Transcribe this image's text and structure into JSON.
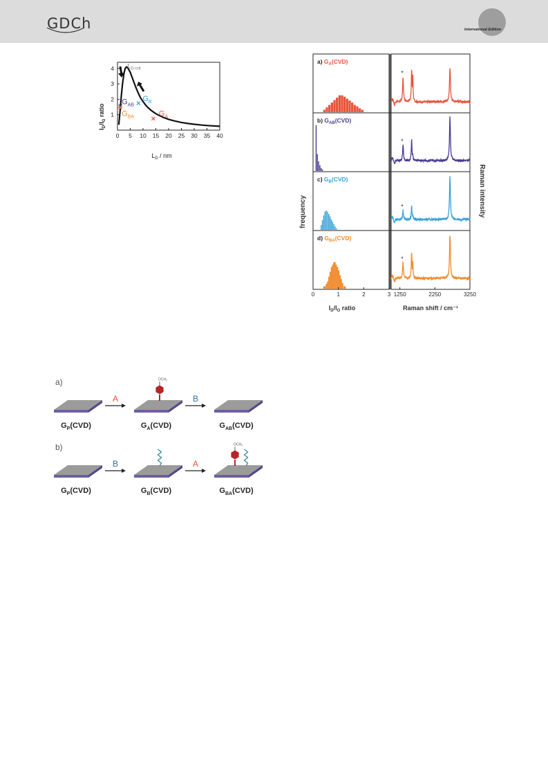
{
  "header": {
    "logo_text": "GDCh",
    "edition_text": "International Edition",
    "bar_color": "#dcdcdc"
  },
  "colors": {
    "gA": "#e8533a",
    "gAB": "#4b3a93",
    "gB": "#3aa0d8",
    "gBA": "#f08a2c",
    "gP": "#9b9b9b",
    "substrate": "#6f5ea8",
    "molecule": "#b8232a",
    "chain": "#3b8a9c"
  },
  "figure_left": {
    "chart_data": {
      "type": "line",
      "xlabel_main": "L",
      "xlabel_sub": "D",
      "xlabel_rest": " / nm",
      "ylabel": "I_D/I_G ratio",
      "xlim": [
        0,
        40
      ],
      "ylim": [
        0,
        4.4
      ],
      "xticks": [
        0,
        5,
        10,
        15,
        20,
        25,
        30,
        35,
        40
      ],
      "yticks": [
        1,
        2,
        3,
        4
      ],
      "series": [
        {
          "x": [
            0.5,
            1,
            1.5,
            2,
            2.5,
            3,
            3.5,
            4,
            5,
            6,
            7,
            8,
            9,
            10,
            11,
            12,
            13,
            14,
            15,
            16,
            18,
            20,
            22,
            25,
            28,
            30,
            33,
            35,
            38,
            40
          ],
          "y": [
            0.35,
            1.2,
            2.2,
            3.05,
            3.65,
            4.0,
            4.1,
            4.05,
            3.75,
            3.3,
            2.85,
            2.45,
            2.1,
            1.85,
            1.63,
            1.45,
            1.3,
            1.18,
            1.07,
            0.98,
            0.82,
            0.7,
            0.61,
            0.5,
            0.42,
            0.38,
            0.33,
            0.3,
            0.27,
            0.25
          ]
        }
      ],
      "peak_label_main": "L",
      "peak_label_sub": "D-crit",
      "peak_x": 3.6,
      "peak_y": 4.1,
      "points": [
        {
          "main": "G",
          "sub": "AB",
          "x": 1.1,
          "y": 1.55,
          "color": "#4b3a93"
        },
        {
          "main": "G",
          "sub": "B",
          "x": 8.2,
          "y": 1.75,
          "color": "#3aa0d8"
        },
        {
          "main": "G",
          "sub": "BA",
          "x": 1.1,
          "y": 1.45,
          "color": "#f08a2c"
        },
        {
          "main": "G",
          "sub": "A",
          "x": 14.0,
          "y": 0.75,
          "color": "#e8533a"
        }
      ]
    }
  },
  "figure_right": {
    "chart_data": [
      {
        "type": "bar",
        "title": "frequency",
        "xlabel": "I_D/I_G ratio",
        "xlim": [
          0,
          3
        ],
        "xticks": [
          0,
          1,
          2,
          3
        ],
        "panels": [
          {
            "label": "a) G_A(CVD)",
            "color": "#e8533a",
            "bins": [
              0.4,
              0.5,
              0.6,
              0.7,
              0.8,
              0.9,
              1.0,
              1.1,
              1.2,
              1.3,
              1.4,
              1.5,
              1.6,
              1.7,
              1.8,
              1.9
            ],
            "values": [
              0.05,
              0.1,
              0.15,
              0.2,
              0.25,
              0.3,
              0.35,
              0.35,
              0.32,
              0.28,
              0.24,
              0.2,
              0.15,
              0.12,
              0.08,
              0.05
            ]
          },
          {
            "label": "b) G_AB(CVD)",
            "color": "#4b3a93",
            "bins": [
              0.1,
              0.15,
              0.2,
              0.25,
              0.3,
              0.35
            ],
            "values": [
              0.95,
              0.35,
              0.2,
              0.12,
              0.06,
              0.03
            ]
          },
          {
            "label": "c) G_B(CVD)",
            "color": "#3aa0d8",
            "bins": [
              0.3,
              0.35,
              0.4,
              0.45,
              0.5,
              0.55,
              0.6,
              0.65,
              0.7,
              0.75,
              0.8,
              0.85,
              0.9
            ],
            "values": [
              0.1,
              0.2,
              0.3,
              0.38,
              0.4,
              0.38,
              0.33,
              0.28,
              0.22,
              0.17,
              0.12,
              0.07,
              0.03
            ]
          },
          {
            "label": "d) G_BA(CVD)",
            "color": "#f08a2c",
            "bins": [
              0.4,
              0.5,
              0.55,
              0.6,
              0.65,
              0.7,
              0.75,
              0.8,
              0.85,
              0.9,
              0.95,
              1.0,
              1.05,
              1.1,
              1.2
            ],
            "values": [
              0.05,
              0.1,
              0.15,
              0.25,
              0.35,
              0.45,
              0.5,
              0.55,
              0.5,
              0.45,
              0.38,
              0.28,
              0.2,
              0.12,
              0.05
            ]
          }
        ]
      },
      {
        "type": "line",
        "title": "Raman intensity",
        "xlabel": "Raman shift / cm⁻¹",
        "xticks": [
          1250,
          2250,
          3250
        ],
        "xlim": [
          1000,
          3250
        ],
        "peaks": {
          "D": 1340,
          "G": 1585,
          "Dprime": 1620,
          "2D": 2680
        },
        "panels": [
          {
            "label": "a",
            "color": "#e8533a",
            "heights": {
              "D": 0.55,
              "G": 0.7,
              "Dprime": 0.55,
              "2D": 0.75
            }
          },
          {
            "label": "b",
            "color": "#4b3a93",
            "heights": {
              "D": 0.35,
              "G": 0.45,
              "Dprime": 0.12,
              "2D": 0.95
            }
          },
          {
            "label": "c",
            "color": "#3aa0d8",
            "heights": {
              "D": 0.2,
              "G": 0.3,
              "Dprime": 0.08,
              "2D": 0.95
            }
          },
          {
            "label": "d",
            "color": "#f08a2c",
            "heights": {
              "D": 0.35,
              "G": 0.55,
              "Dprime": 0.3,
              "2D": 0.95
            }
          }
        ]
      }
    ]
  },
  "scheme": {
    "row_a_label": "a)",
    "row_b_label": "b)",
    "row_a": [
      {
        "main": "G",
        "sub": "P",
        "rest": "(CVD)"
      },
      {
        "main": "G",
        "sub": "A",
        "rest": "(CVD)"
      },
      {
        "main": "G",
        "sub": "AB",
        "rest": "(CVD)"
      }
    ],
    "row_b": [
      {
        "main": "G",
        "sub": "P",
        "rest": "(CVD)"
      },
      {
        "main": "G",
        "sub": "B",
        "rest": "(CVD)"
      },
      {
        "main": "G",
        "sub": "BA",
        "rest": "(CVD)"
      }
    ],
    "arrows_a": [
      "A",
      "B"
    ],
    "arrows_b": [
      "B",
      "A"
    ],
    "ome_label": "OCH₃"
  }
}
